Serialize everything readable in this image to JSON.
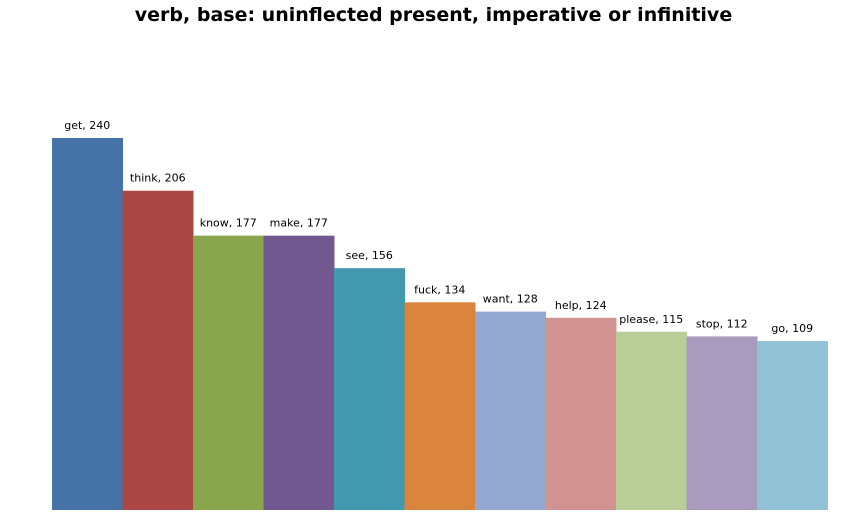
{
  "chart_data": {
    "type": "bar",
    "title": "verb, base: uninflected present, imperative or infinitive",
    "xlabel": "",
    "ylabel": "",
    "ylim": [
      0,
      240
    ],
    "grid": false,
    "legend": "none",
    "categories": [
      "get",
      "think",
      "know",
      "make",
      "see",
      "fuck",
      "want",
      "help",
      "please",
      "stop",
      "go"
    ],
    "values": [
      240,
      206,
      177,
      177,
      156,
      134,
      128,
      124,
      115,
      112,
      109
    ],
    "data_labels": [
      "get, 240",
      "think, 206",
      "know, 177",
      "make, 177",
      "see, 156",
      "fuck, 134",
      "want, 128",
      "help, 124",
      "please, 115",
      "stop, 112",
      "go, 109"
    ],
    "colors": [
      "#4572A7",
      "#AA4643",
      "#89A54E",
      "#71588F",
      "#4198AF",
      "#DB843D",
      "#93A9CF",
      "#D19392",
      "#B9CD96",
      "#A99BBD",
      "#92C2D5"
    ]
  }
}
